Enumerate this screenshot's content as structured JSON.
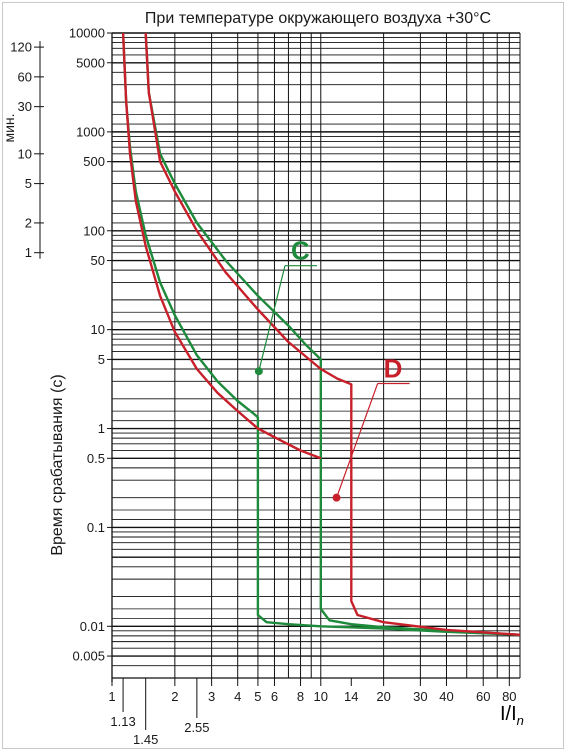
{
  "chart_data": {
    "type": "line",
    "title": "При температуре окружающего воздуха +30°С",
    "xlabel": "I/I",
    "xlabel_sub": "n",
    "ylabel": "Время срабатывания (с)",
    "xscale": "log",
    "yscale": "log",
    "xlim": [
      1,
      90
    ],
    "ylim": [
      0.003,
      10000
    ],
    "grid": true,
    "x_ticks": [
      {
        "v": 1,
        "label": "1"
      },
      {
        "v": 2,
        "label": "2"
      },
      {
        "v": 3,
        "label": "3"
      },
      {
        "v": 4,
        "label": "4"
      },
      {
        "v": 5,
        "label": "5"
      },
      {
        "v": 6,
        "label": "6"
      },
      {
        "v": 8,
        "label": "8"
      },
      {
        "v": 10,
        "label": "10"
      },
      {
        "v": 14,
        "label": "14"
      },
      {
        "v": 20,
        "label": "20"
      },
      {
        "v": 30,
        "label": "30"
      },
      {
        "v": 40,
        "label": "40"
      },
      {
        "v": 60,
        "label": "60"
      },
      {
        "v": 80,
        "label": "80"
      }
    ],
    "x_sub_ticks": [
      {
        "v": 1.13,
        "label": "1.13"
      },
      {
        "v": 1.45,
        "label": "1.45"
      },
      {
        "v": 2.55,
        "label": "2.55"
      }
    ],
    "y_ticks": [
      {
        "v": 10000,
        "label": "10000"
      },
      {
        "v": 5000,
        "label": "5000"
      },
      {
        "v": 1000,
        "label": "1000"
      },
      {
        "v": 500,
        "label": "500"
      },
      {
        "v": 100,
        "label": "100"
      },
      {
        "v": 50,
        "label": "50"
      },
      {
        "v": 10,
        "label": "10"
      },
      {
        "v": 5,
        "label": "5"
      },
      {
        "v": 1,
        "label": "1"
      },
      {
        "v": 0.5,
        "label": "0.5"
      },
      {
        "v": 0.1,
        "label": "0.1"
      },
      {
        "v": 0.01,
        "label": "0.01"
      },
      {
        "v": 0.005,
        "label": "0.005"
      }
    ],
    "minutes_axis": {
      "label": "мин.",
      "ticks": [
        {
          "v": 120,
          "label": "120"
        },
        {
          "v": 60,
          "label": "60"
        },
        {
          "v": 30,
          "label": "30"
        },
        {
          "v": 10,
          "label": "10"
        },
        {
          "v": 5,
          "label": "5"
        },
        {
          "v": 2,
          "label": "2"
        },
        {
          "v": 1,
          "label": "1"
        }
      ]
    },
    "series": [
      {
        "name": "C",
        "color": "#1e8a3c",
        "label_at": [
          7.2,
          56
        ],
        "marker": [
          5.05,
          3.8
        ],
        "curves": [
          [
            [
              1.13,
              10000
            ],
            [
              1.17,
              2000
            ],
            [
              1.22,
              700
            ],
            [
              1.3,
              250
            ],
            [
              1.45,
              90
            ],
            [
              1.7,
              30
            ],
            [
              2.0,
              14
            ],
            [
              2.55,
              5.5
            ],
            [
              3.2,
              3
            ],
            [
              4.0,
              1.9
            ],
            [
              4.8,
              1.4
            ],
            [
              5.0,
              1.3
            ],
            [
              5.0,
              0.013
            ],
            [
              5.5,
              0.011
            ],
            [
              7,
              0.0105
            ],
            [
              10,
              0.01
            ],
            [
              20,
              0.0095
            ],
            [
              40,
              0.0088
            ],
            [
              90,
              0.0082
            ]
          ],
          [
            [
              1.45,
              10000
            ],
            [
              1.5,
              2500
            ],
            [
              1.7,
              600
            ],
            [
              2.0,
              300
            ],
            [
              2.55,
              120
            ],
            [
              3.5,
              50
            ],
            [
              5.0,
              22
            ],
            [
              7.0,
              11
            ],
            [
              8.5,
              7
            ],
            [
              10,
              5
            ],
            [
              10,
              0.015
            ],
            [
              11,
              0.0115
            ],
            [
              14,
              0.0105
            ],
            [
              20,
              0.0098
            ],
            [
              40,
              0.009
            ],
            [
              90,
              0.0082
            ]
          ]
        ]
      },
      {
        "name": "D",
        "color": "#c8202a",
        "label_at": [
          20,
          3.6
        ],
        "marker": [
          11.9,
          0.2
        ],
        "curves": [
          [
            [
              1.13,
              10000
            ],
            [
              1.17,
              2000
            ],
            [
              1.22,
              600
            ],
            [
              1.3,
              200
            ],
            [
              1.45,
              70
            ],
            [
              1.7,
              22
            ],
            [
              2.0,
              9.5
            ],
            [
              2.55,
              4
            ],
            [
              3.2,
              2.3
            ],
            [
              4.0,
              1.5
            ],
            [
              5.0,
              1.0
            ],
            [
              6.5,
              0.75
            ],
            [
              8.0,
              0.6
            ],
            [
              10,
              0.5
            ]
          ],
          [
            [
              1.45,
              10000
            ],
            [
              1.5,
              2500
            ],
            [
              1.7,
              500
            ],
            [
              2.0,
              250
            ],
            [
              2.55,
              100
            ],
            [
              3.5,
              38
            ],
            [
              5.0,
              16
            ],
            [
              7.0,
              7.5
            ],
            [
              10,
              4
            ],
            [
              12,
              3.2
            ],
            [
              14,
              2.8
            ],
            [
              14,
              0.018
            ],
            [
              15,
              0.013
            ],
            [
              20,
              0.011
            ],
            [
              40,
              0.0092
            ],
            [
              90,
              0.0082
            ]
          ]
        ]
      }
    ]
  }
}
